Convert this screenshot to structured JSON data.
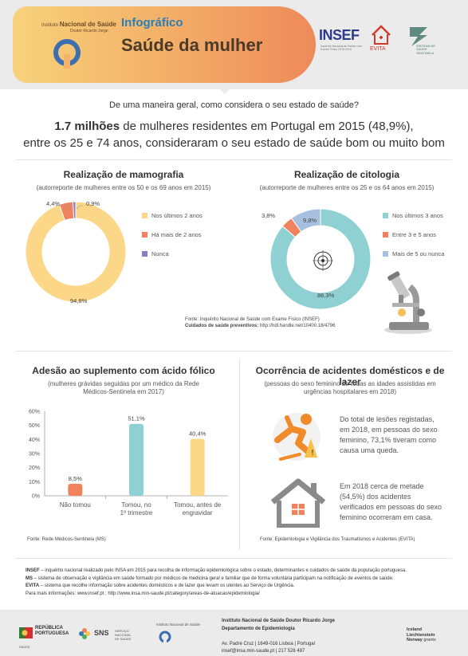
{
  "header": {
    "org_line1_prefix": "Instituto",
    "org_line1_name": "Nacional de Saúde",
    "org_line2": "Doutor Ricardo Jorge",
    "kicker": "Infográfico",
    "title": "Saúde da mulher",
    "insef_logo": "INSEF",
    "insef_caption": "Inquérito Nacional de Saúde com Exame Físico 2015-2016",
    "evita_logo": "EVITA",
    "sns_caption": "SISTEMA DE SAÚDE SENTINELA"
  },
  "intro": {
    "question": "De uma maneira geral, como considera o seu estado de saúde?",
    "highlight": "1.7 milhões",
    "sentence_rest": " de mulheres residentes em Portugal em 2015 (48,9%),",
    "sentence_line2": "entre os 25 e 74 anos, consideraram o seu estado de saúde bom ou muito bom"
  },
  "colors": {
    "yellow": "#fbd787",
    "orange": "#f0825e",
    "purple": "#8e7cc3",
    "teal": "#8fd0d2",
    "blue": "#a7c0df"
  },
  "mammography": {
    "title": "Realização de mamografia",
    "subtitle": "(autorreporte de mulheres entre os 50 e os 69 anos em 2015)"
  },
  "cytology": {
    "title": "Realização de citologia",
    "subtitle": "(autorreporte de mulheres entre os 25 e os 64 anos em 2015)"
  },
  "source_insef": {
    "line1": "Fonte: Inquérito Nacional de Saúde com Exame Físico (INSEF)",
    "line2_bold": "Cuidados de saúde preventivos:",
    "line2_link": " http://hdl.handle.net/10400.18/4796"
  },
  "folic": {
    "title": "Adesão ao suplemento com ácido fólico",
    "subtitle_l1": "(mulheres grávidas seguidas por um médico da Rede",
    "subtitle_l2": "Médicos-Sentinela em 2017)",
    "source": "Fonte: Rede Médicos-Sentinela (MS)"
  },
  "accidents": {
    "title": "Ocorrência de acidentes domésticos e de lazer",
    "subtitle_l1": "(pessoas do sexo feminino de todas as idades assistidas em",
    "subtitle_l2": "urgências hospitalares em 2018)",
    "fact1_l1": "Do total de lesões registadas,",
    "fact1_l2": "em 2018, em pessoas do sexo",
    "fact1_l3": "feminino, 73,1% tiveram como",
    "fact1_l4": "causa uma queda.",
    "fact2_l1": "Em 2018 cerca de metade",
    "fact2_l2": "(54,5%) dos acidentes",
    "fact2_l3": "verificados em pessoas do sexo",
    "fact2_l4": "feminino ocorreram em casa.",
    "source": "Fonte: Epidemiologia e Vigilância dos Traumatismos e Acidentes (EVITA)"
  },
  "notes": {
    "insef_key": "INSEF",
    "insef_text": " – inquérito nacional realizado pelo INSA em 2015 para recolha de informação epidemiológica sobre o estado, determinantes e cuidados de saúde da população portuguesa.",
    "ms_key": "MS",
    "ms_text": " – sistema de observação e vigilância em saúde formado por médicos de medicina geral e familiar que de forma voluntária participam na notificação de eventos de saúde.",
    "evita_key": "EVITA",
    "evita_text": " – sistema que recolhe informação sobre acidentes domésticos e de lazer que levam os utentes ao Serviço de Urgência.",
    "more_info": "Para mais informações: www.insef.pt ; http://www.insa.min-saude.pt/category/areas-de-atuacao/epidemiologia/"
  },
  "footer": {
    "republica_l1": "REPÚBLICA",
    "republica_l2": "PORTUGUESA",
    "republica_sub": "SAÚDE",
    "sns_word": "SNS",
    "sns_sub_l1": "SERVIÇO NACIONAL",
    "sns_sub_l2": "DE SAÚDE",
    "insa_small": "Instituto Nacional de Saúde",
    "addr_l1": "Instituto Nacional de Saúde Doutor Ricardo Jorge",
    "addr_l2": "Departamento de Epidemiologia",
    "addr_l3": "Av. Padre Cruz  |  1649-016  Lisboa  |  Portugal",
    "addr_l4": "insef@insa.min-saude.pt  |  217 526 487",
    "grants_l1": "Iceland",
    "grants_l2": "Liechtenstein",
    "grants_l3_bold": "Norway",
    "grants_l3_rest": " grants"
  },
  "chart_data": [
    {
      "type": "pie",
      "title": "Realização de mamografia",
      "categories": [
        "Nos últimos 2 anos",
        "Há mais de 2 anos",
        "Nunca"
      ],
      "values": [
        94.8,
        4.4,
        0.9
      ],
      "value_labels": [
        "94,8%",
        "4,4%",
        "0,9%"
      ],
      "legend_position": "right"
    },
    {
      "type": "pie",
      "title": "Realização de citologia",
      "categories": [
        "Nos últimos 3 anos",
        "Entre 3 e 5 anos",
        "Mais de 5 ou nunca"
      ],
      "values": [
        86.3,
        3.8,
        9.8
      ],
      "value_labels": [
        "86,3%",
        "3,8%",
        "9,8%"
      ],
      "legend_position": "right"
    },
    {
      "type": "bar",
      "title": "Adesão ao suplemento com ácido fólico",
      "categories": [
        "Não tomou",
        "Tomou, no 1º trimestre",
        "Tomou, antes de engravidar"
      ],
      "category_lines": [
        [
          "Não tomou"
        ],
        [
          "Tomou, no",
          "1º trimestre"
        ],
        [
          "Tomou, antes de",
          "engravidar"
        ]
      ],
      "values": [
        8.5,
        51.1,
        40.4
      ],
      "value_labels": [
        "8,5%",
        "51,1%",
        "40,4%"
      ],
      "ylim": [
        0,
        60
      ],
      "yticks": [
        "0%",
        "10%",
        "20%",
        "30%",
        "40%",
        "50%",
        "60%"
      ],
      "grid": false
    }
  ]
}
